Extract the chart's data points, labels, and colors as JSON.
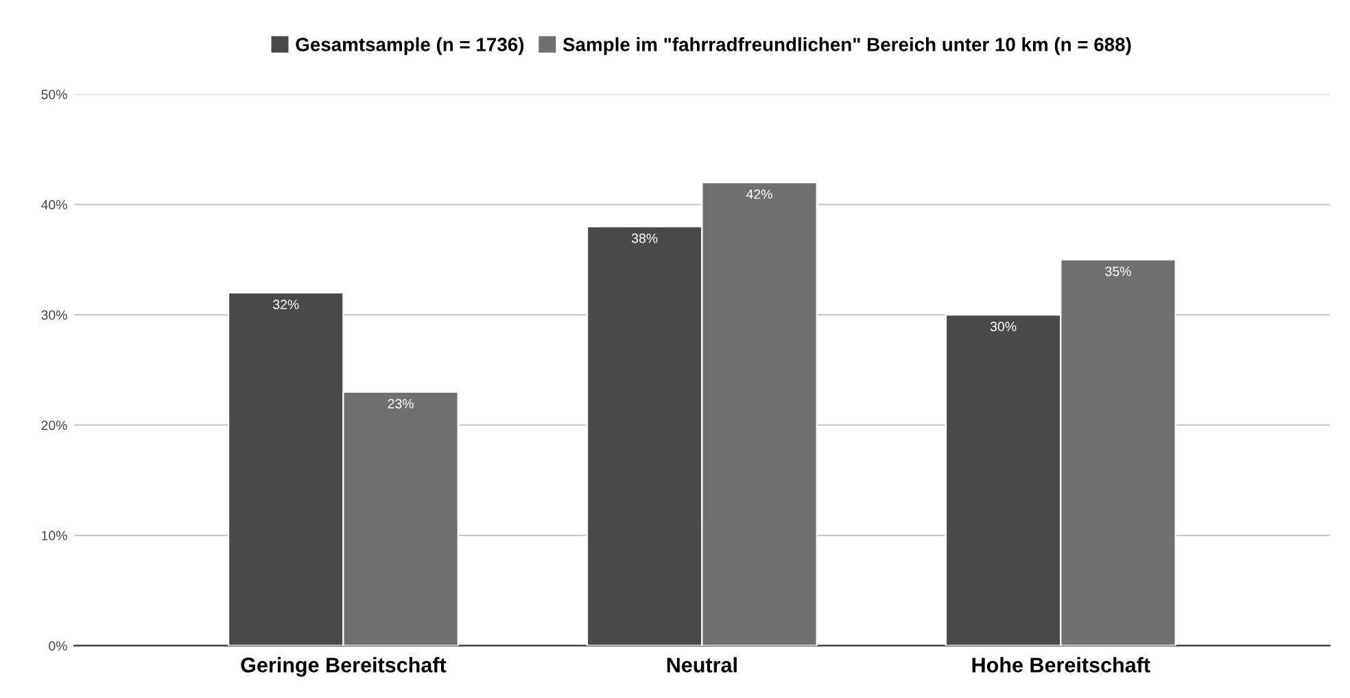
{
  "chart_data": {
    "type": "bar",
    "categories": [
      "Geringe Bereitschaft",
      "Neutral",
      "Hohe Bereitschaft"
    ],
    "series": [
      {
        "name": "Gesamtsample (n = 1736)",
        "color": "#4a4a4a",
        "values": [
          32,
          38,
          30
        ],
        "value_labels": [
          "32%",
          "38%",
          "30%"
        ]
      },
      {
        "name": "Sample im \"fahrradfreundlichen\" Bereich unter 10 km (n = 688)",
        "color": "#707070",
        "values": [
          23,
          42,
          35
        ],
        "value_labels": [
          "23%",
          "42%",
          "35%"
        ]
      }
    ],
    "ylim": [
      0,
      50
    ],
    "yticks": [
      {
        "value": 0,
        "label": "0%"
      },
      {
        "value": 10,
        "label": "10%"
      },
      {
        "value": 20,
        "label": "20%"
      },
      {
        "value": 30,
        "label": "30%"
      },
      {
        "value": 40,
        "label": "40%"
      },
      {
        "value": 50,
        "label": "50%"
      }
    ],
    "grid": "y",
    "legend": "top"
  }
}
